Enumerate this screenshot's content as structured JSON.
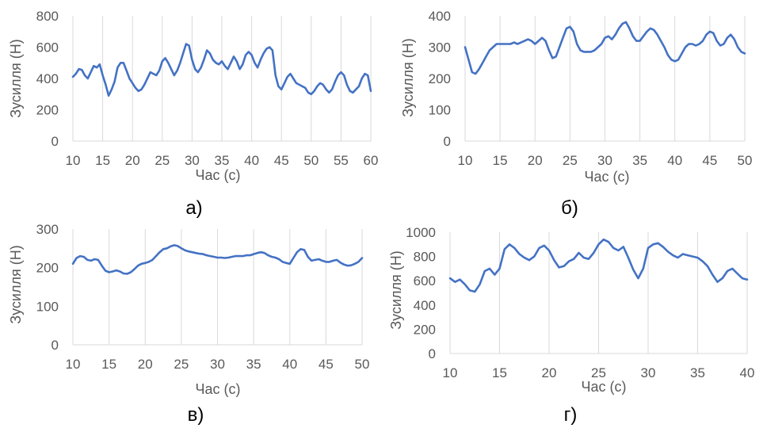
{
  "colors": {
    "line": "#4472c4",
    "grid": "#d9d9d9",
    "text": "#595959"
  },
  "chart_data": [
    {
      "type": "line",
      "label": "а)",
      "xlabel": "Час (с)",
      "ylabel": "Зусилля (Н)",
      "xlim": [
        10,
        60
      ],
      "ylim": [
        0,
        800
      ],
      "xticks": [
        10,
        15,
        20,
        25,
        30,
        35,
        40,
        45,
        50,
        55,
        60
      ],
      "yticks": [
        0,
        200,
        400,
        600,
        800
      ],
      "grid": "vertical",
      "series": [
        {
          "x": [
            10,
            10.5,
            11,
            11.5,
            12,
            12.5,
            13,
            13.5,
            14,
            14.5,
            15,
            15.5,
            16,
            16.5,
            17,
            17.5,
            18,
            18.5,
            19,
            19.5,
            20,
            20.5,
            21,
            21.5,
            22,
            22.5,
            23,
            23.5,
            24,
            24.5,
            25,
            25.5,
            26,
            26.5,
            27,
            27.5,
            28,
            28.5,
            29,
            29.5,
            30,
            30.5,
            31,
            31.5,
            32,
            32.5,
            33,
            33.5,
            34,
            34.5,
            35,
            35.5,
            36,
            36.5,
            37,
            37.5,
            38,
            38.5,
            39,
            39.5,
            40,
            40.5,
            41,
            41.5,
            42,
            42.5,
            43,
            43.5,
            44,
            44.5,
            45,
            45.5,
            46,
            46.5,
            47,
            47.5,
            48,
            48.5,
            49,
            49.5,
            50,
            50.5,
            51,
            51.5,
            52,
            52.5,
            53,
            53.5,
            54,
            54.5,
            55,
            55.5,
            56,
            56.5,
            57,
            57.5,
            58,
            58.5,
            59,
            59.5,
            60
          ],
          "y": [
            410,
            430,
            460,
            455,
            420,
            400,
            440,
            480,
            470,
            490,
            420,
            360,
            290,
            330,
            380,
            470,
            500,
            500,
            450,
            400,
            370,
            340,
            320,
            330,
            360,
            400,
            440,
            430,
            420,
            450,
            510,
            530,
            500,
            460,
            420,
            450,
            500,
            560,
            620,
            610,
            520,
            460,
            440,
            470,
            520,
            580,
            560,
            520,
            500,
            490,
            510,
            480,
            460,
            500,
            540,
            510,
            460,
            490,
            550,
            570,
            550,
            500,
            470,
            520,
            560,
            590,
            600,
            580,
            420,
            350,
            330,
            370,
            410,
            430,
            400,
            370,
            360,
            350,
            340,
            310,
            300,
            320,
            350,
            370,
            360,
            330,
            310,
            330,
            380,
            420,
            440,
            420,
            360,
            320,
            310,
            330,
            350,
            400,
            430,
            420,
            320
          ]
        }
      ]
    },
    {
      "type": "line",
      "label": "б)",
      "xlabel": "Час (с)",
      "ylabel": "Зусилля (Н)",
      "xlim": [
        10,
        50
      ],
      "ylim": [
        0,
        400
      ],
      "xticks": [
        10,
        15,
        20,
        25,
        30,
        35,
        40,
        45,
        50
      ],
      "yticks": [
        0,
        100,
        200,
        300,
        400
      ],
      "grid": "vertical",
      "series": [
        {
          "x": [
            10,
            10.5,
            11,
            11.5,
            12,
            12.5,
            13,
            13.5,
            14,
            14.5,
            15,
            15.5,
            16,
            16.5,
            17,
            17.5,
            18,
            18.5,
            19,
            19.5,
            20,
            20.5,
            21,
            21.5,
            22,
            22.5,
            23,
            23.5,
            24,
            24.5,
            25,
            25.5,
            26,
            26.5,
            27,
            27.5,
            28,
            28.5,
            29,
            29.5,
            30,
            30.5,
            31,
            31.5,
            32,
            32.5,
            33,
            33.5,
            34,
            34.5,
            35,
            35.5,
            36,
            36.5,
            37,
            37.5,
            38,
            38.5,
            39,
            39.5,
            40,
            40.5,
            41,
            41.5,
            42,
            42.5,
            43,
            43.5,
            44,
            44.5,
            45,
            45.5,
            46,
            46.5,
            47,
            47.5,
            48,
            48.5,
            49,
            49.5,
            50
          ],
          "y": [
            300,
            260,
            220,
            215,
            230,
            250,
            270,
            290,
            300,
            310,
            310,
            310,
            310,
            310,
            315,
            310,
            315,
            320,
            325,
            320,
            310,
            320,
            330,
            320,
            290,
            265,
            270,
            300,
            330,
            360,
            365,
            350,
            310,
            290,
            285,
            285,
            285,
            290,
            300,
            310,
            330,
            335,
            325,
            340,
            360,
            375,
            380,
            360,
            335,
            320,
            320,
            335,
            350,
            360,
            355,
            340,
            320,
            300,
            275,
            260,
            255,
            260,
            280,
            300,
            310,
            310,
            305,
            310,
            320,
            340,
            350,
            345,
            320,
            305,
            310,
            330,
            340,
            325,
            300,
            285,
            280
          ]
        }
      ]
    },
    {
      "type": "line",
      "label": "в)",
      "xlabel": "Час (с)",
      "ylabel": "Зусилля (Н)",
      "xlim": [
        10,
        50
      ],
      "ylim": [
        0,
        300
      ],
      "xticks": [
        10,
        15,
        20,
        25,
        30,
        35,
        40,
        45,
        50
      ],
      "yticks": [
        0,
        100,
        200,
        300
      ],
      "grid": "vertical",
      "series": [
        {
          "x": [
            10,
            10.5,
            11,
            11.5,
            12,
            12.5,
            13,
            13.5,
            14,
            14.5,
            15,
            15.5,
            16,
            16.5,
            17,
            17.5,
            18,
            18.5,
            19,
            19.5,
            20,
            20.5,
            21,
            21.5,
            22,
            22.5,
            23,
            23.5,
            24,
            24.5,
            25,
            25.5,
            26,
            26.5,
            27,
            27.5,
            28,
            28.5,
            29,
            29.5,
            30,
            30.5,
            31,
            31.5,
            32,
            32.5,
            33,
            33.5,
            34,
            34.5,
            35,
            35.5,
            36,
            36.5,
            37,
            37.5,
            38,
            38.5,
            39,
            39.5,
            40,
            40.5,
            41,
            41.5,
            42,
            42.5,
            43,
            43.5,
            44,
            44.5,
            45,
            45.5,
            46,
            46.5,
            47,
            47.5,
            48,
            48.5,
            49,
            49.5,
            50
          ],
          "y": [
            210,
            225,
            230,
            228,
            220,
            218,
            222,
            220,
            205,
            192,
            188,
            190,
            193,
            190,
            185,
            184,
            188,
            196,
            205,
            210,
            212,
            215,
            220,
            230,
            240,
            248,
            250,
            255,
            258,
            256,
            250,
            245,
            242,
            240,
            238,
            236,
            235,
            232,
            230,
            228,
            226,
            226,
            225,
            226,
            228,
            230,
            230,
            230,
            232,
            232,
            235,
            238,
            240,
            238,
            232,
            228,
            226,
            222,
            215,
            212,
            210,
            225,
            240,
            248,
            246,
            228,
            218,
            220,
            222,
            218,
            215,
            215,
            218,
            220,
            213,
            208,
            205,
            206,
            210,
            215,
            225
          ]
        }
      ]
    },
    {
      "type": "line",
      "label": "г)",
      "xlabel": "Час (с)",
      "ylabel": "Зусилля (Н)",
      "xlim": [
        10,
        40
      ],
      "ylim": [
        0,
        1000
      ],
      "xticks": [
        10,
        15,
        20,
        25,
        30,
        35,
        40
      ],
      "yticks": [
        0,
        200,
        400,
        600,
        800,
        1000
      ],
      "grid": "vertical",
      "series": [
        {
          "x": [
            10,
            10.5,
            11,
            11.5,
            12,
            12.5,
            13,
            13.5,
            14,
            14.5,
            15,
            15.5,
            16,
            16.5,
            17,
            17.5,
            18,
            18.5,
            19,
            19.5,
            20,
            20.5,
            21,
            21.5,
            22,
            22.5,
            23,
            23.5,
            24,
            24.5,
            25,
            25.5,
            26,
            26.5,
            27,
            27.5,
            28,
            28.5,
            29,
            29.5,
            30,
            30.5,
            31,
            31.5,
            32,
            32.5,
            33,
            33.5,
            34,
            34.5,
            35,
            35.5,
            36,
            36.5,
            37,
            37.5,
            38,
            38.5,
            39,
            39.5,
            40
          ],
          "y": [
            620,
            590,
            610,
            570,
            520,
            510,
            570,
            680,
            700,
            650,
            700,
            860,
            900,
            870,
            820,
            790,
            770,
            800,
            870,
            890,
            850,
            770,
            710,
            720,
            760,
            780,
            830,
            790,
            780,
            830,
            900,
            940,
            920,
            870,
            850,
            880,
            790,
            690,
            620,
            700,
            870,
            900,
            910,
            880,
            840,
            810,
            790,
            820,
            810,
            800,
            790,
            760,
            720,
            650,
            590,
            620,
            680,
            700,
            660,
            620,
            610
          ]
        }
      ]
    }
  ]
}
